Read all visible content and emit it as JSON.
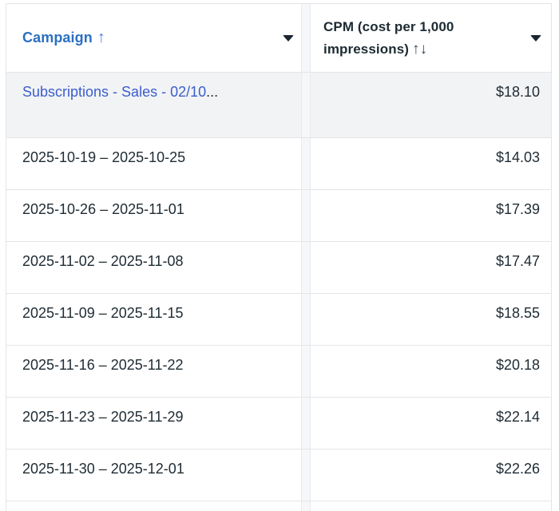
{
  "table": {
    "columns": [
      {
        "label": "Campaign",
        "sort_indicator": "↑"
      },
      {
        "label": "CPM (cost per 1,000 impressions)",
        "sort_indicator": "↑↓"
      }
    ],
    "truncation_ellipsis": "...",
    "rows": [
      {
        "campaign": "Subscriptions - Sales - 02/10",
        "cpm": "$18.10",
        "is_link": true,
        "truncated": true,
        "highlighted": true
      },
      {
        "campaign": "2025-10-19 – 2025-10-25",
        "cpm": "$14.03"
      },
      {
        "campaign": "2025-10-26 – 2025-11-01",
        "cpm": "$17.39"
      },
      {
        "campaign": "2025-11-02 – 2025-11-08",
        "cpm": "$17.47"
      },
      {
        "campaign": "2025-11-09 – 2025-11-15",
        "cpm": "$18.55"
      },
      {
        "campaign": "2025-11-16 – 2025-11-22",
        "cpm": "$20.18"
      },
      {
        "campaign": "2025-11-23 – 2025-11-29",
        "cpm": "$22.14"
      },
      {
        "campaign": "2025-11-30 – 2025-12-01",
        "cpm": "$22.26"
      }
    ]
  },
  "colors": {
    "header_link_blue": "#2b70c2",
    "sort_arrow_blue": "#5577e8",
    "campaign_link_blue": "#3b5ecc",
    "dark_text": "#1c2b33",
    "row_highlight_bg": "#f2f3f5",
    "divider": "#e3e5e8"
  }
}
